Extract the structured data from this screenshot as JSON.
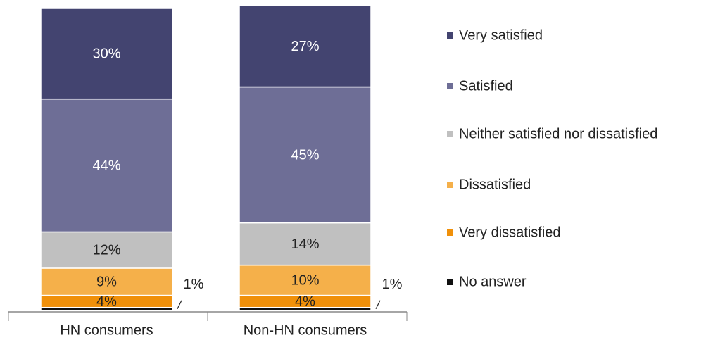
{
  "chart_data": {
    "type": "stacked_bar",
    "categories": [
      "HN consumers",
      "Non-HN consumers"
    ],
    "series": [
      {
        "name": "No answer",
        "color": "#111111",
        "values": [
          1,
          1
        ],
        "value_labels": [
          "1%",
          "1%"
        ]
      },
      {
        "name": "Very dissatisfied",
        "color": "#f0900a",
        "values": [
          4,
          4
        ],
        "value_labels": [
          "4%",
          "4%"
        ]
      },
      {
        "name": "Dissatisfied",
        "color": "#f5b04a",
        "values": [
          9,
          10
        ],
        "value_labels": [
          "9%",
          "10%"
        ]
      },
      {
        "name": "Neither satisfied nor dissatisfied",
        "color": "#c0c0c0",
        "values": [
          12,
          14
        ],
        "value_labels": [
          "12%",
          "14%"
        ]
      },
      {
        "name": "Satisfied",
        "color": "#6e6e96",
        "values": [
          44,
          45
        ],
        "value_labels": [
          "44%",
          "45%"
        ]
      },
      {
        "name": "Very satisfied",
        "color": "#434470",
        "values": [
          30,
          27
        ],
        "value_labels": [
          "30%",
          "27%"
        ]
      }
    ],
    "ylim": [
      0,
      100
    ]
  }
}
